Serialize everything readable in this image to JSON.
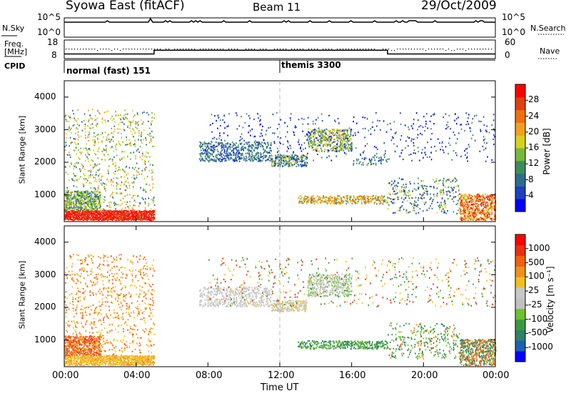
{
  "header": {
    "title": "Syowa East (fitACF)",
    "beam": "Beam 11",
    "date": "29/Oct/2009"
  },
  "top_panels": {
    "nsky_label": "N.Sky",
    "nsky_ticks": [
      "10^5",
      "10^0"
    ],
    "nsearch_label": "N.Search",
    "nsearch_ticks": [
      "10^5",
      "10^0"
    ],
    "freq_label_line1": "Freq.",
    "freq_label_line2": "[MHz]",
    "freq_ticks": [
      "18",
      "8"
    ],
    "nave_label": "Nave",
    "nave_ticks": [
      "60",
      "0"
    ],
    "cpid_label": "CPID",
    "cpid_segments": [
      {
        "label": "normal (fast) 151",
        "start_hour": 0,
        "end_hour": 12
      },
      {
        "label": "themis 3300",
        "start_hour": 12,
        "end_hour": 24
      }
    ],
    "freq_segments": [
      {
        "start_hour": 0,
        "end_hour": 5,
        "freq_mhz": 10.5
      },
      {
        "start_hour": 5,
        "end_hour": 18,
        "freq_mhz": 12.5
      },
      {
        "start_hour": 18,
        "end_hour": 24,
        "freq_mhz": 10.5
      }
    ]
  },
  "colorbars": {
    "power": {
      "label": "Power [dB]",
      "ticks": [
        "28",
        "24",
        "20",
        "16",
        "12",
        "8",
        "4"
      ],
      "colors": [
        "#0000ff",
        "#1d3fc0",
        "#2c6e8a",
        "#3d8c5a",
        "#78b83a",
        "#d8d020",
        "#f0a020",
        "#f07010",
        "#e04010",
        "#ff0000"
      ]
    },
    "velocity": {
      "label": "Velocity [m s⁻¹]",
      "ticks": [
        "1000",
        "500",
        "100",
        "25",
        "-25",
        "-100",
        "-500",
        "-1000"
      ],
      "colors": [
        "#0000ff",
        "#1d5fb0",
        "#2f7f6a",
        "#3a9a40",
        "#70c030",
        "#c0c0c0",
        "#c8c8c8",
        "#f0c020",
        "#f09020",
        "#f06010",
        "#e83010",
        "#ff0000"
      ]
    }
  },
  "chart_data": [
    {
      "type": "heatmap",
      "name": "power",
      "ylabel": "Slant Range [km]",
      "xlabel": "Time UT",
      "ylim": [
        180,
        4500
      ],
      "xlim": [
        0,
        24
      ],
      "yticks": [
        "1000",
        "2000",
        "3000",
        "4000"
      ],
      "xticks": [
        "00:00",
        "04:00",
        "08:00",
        "12:00",
        "16:00",
        "20:00",
        "00:00"
      ],
      "scatter_regions": [
        {
          "t0": 0,
          "t1": 5,
          "r0": 200,
          "r1": 500,
          "density": 0.9,
          "levels": [
            8,
            9,
            9,
            8
          ]
        },
        {
          "t0": 0,
          "t1": 2,
          "r0": 500,
          "r1": 1100,
          "density": 0.6,
          "levels": [
            3,
            4,
            2,
            5
          ]
        },
        {
          "t0": 0,
          "t1": 5,
          "r0": 500,
          "r1": 3600,
          "density": 0.08,
          "levels": [
            2,
            4,
            5,
            6
          ]
        },
        {
          "t0": 7.5,
          "t1": 11.5,
          "r0": 2000,
          "r1": 2600,
          "density": 0.3,
          "levels": [
            1,
            2,
            3
          ]
        },
        {
          "t0": 11.5,
          "t1": 13.5,
          "r0": 1850,
          "r1": 2200,
          "density": 0.45,
          "levels": [
            1,
            2,
            3,
            5
          ]
        },
        {
          "t0": 13.5,
          "t1": 16,
          "r0": 2300,
          "r1": 3000,
          "density": 0.35,
          "levels": [
            2,
            3,
            4,
            5,
            6
          ]
        },
        {
          "t0": 13,
          "t1": 18,
          "r0": 700,
          "r1": 950,
          "density": 0.4,
          "levels": [
            3,
            5,
            6,
            7
          ]
        },
        {
          "t0": 16,
          "t1": 18,
          "r0": 1900,
          "r1": 2150,
          "density": 0.15,
          "levels": [
            2,
            3
          ]
        },
        {
          "t0": 18,
          "t1": 22,
          "r0": 400,
          "r1": 1500,
          "density": 0.12,
          "levels": [
            1,
            2,
            3,
            5
          ]
        },
        {
          "t0": 22,
          "t1": 24,
          "r0": 200,
          "r1": 1000,
          "density": 0.5,
          "levels": [
            5,
            6,
            7,
            8,
            9
          ]
        },
        {
          "t0": 8,
          "t1": 24,
          "r0": 2000,
          "r1": 3500,
          "density": 0.03,
          "levels": [
            0,
            1,
            3
          ]
        }
      ]
    },
    {
      "type": "heatmap",
      "name": "velocity",
      "ylabel": "Slant Range [km]",
      "xlabel": "Time UT",
      "ylim": [
        180,
        4500
      ],
      "xlim": [
        0,
        24
      ],
      "yticks": [
        "1000",
        "2000",
        "3000",
        "4000"
      ],
      "xticks": [
        "00:00",
        "04:00",
        "08:00",
        "12:00",
        "16:00",
        "20:00",
        "00:00"
      ],
      "scatter_regions": [
        {
          "t0": 0,
          "t1": 5,
          "r0": 200,
          "r1": 500,
          "density": 0.7,
          "levels": [
            7,
            8,
            7
          ]
        },
        {
          "t0": 0,
          "t1": 2,
          "r0": 500,
          "r1": 1100,
          "density": 0.6,
          "levels": [
            8,
            9,
            10
          ]
        },
        {
          "t0": 0,
          "t1": 5,
          "r0": 500,
          "r1": 3600,
          "density": 0.08,
          "levels": [
            7,
            8,
            9
          ]
        },
        {
          "t0": 7.5,
          "t1": 11.5,
          "r0": 2000,
          "r1": 2600,
          "density": 0.3,
          "levels": [
            5,
            6
          ]
        },
        {
          "t0": 11.5,
          "t1": 13.5,
          "r0": 1850,
          "r1": 2200,
          "density": 0.45,
          "levels": [
            5,
            6,
            7
          ]
        },
        {
          "t0": 13.5,
          "t1": 16,
          "r0": 2300,
          "r1": 3000,
          "density": 0.35,
          "levels": [
            5,
            6,
            4
          ]
        },
        {
          "t0": 13,
          "t1": 18,
          "r0": 700,
          "r1": 950,
          "density": 0.4,
          "levels": [
            2,
            3,
            4
          ]
        },
        {
          "t0": 18,
          "t1": 22,
          "r0": 400,
          "r1": 1500,
          "density": 0.12,
          "levels": [
            2,
            3,
            4,
            8
          ]
        },
        {
          "t0": 22,
          "t1": 24,
          "r0": 200,
          "r1": 1000,
          "density": 0.5,
          "levels": [
            8,
            9,
            3,
            2
          ]
        },
        {
          "t0": 8,
          "t1": 24,
          "r0": 2000,
          "r1": 3500,
          "density": 0.03,
          "levels": [
            3,
            7,
            10
          ]
        }
      ]
    }
  ]
}
